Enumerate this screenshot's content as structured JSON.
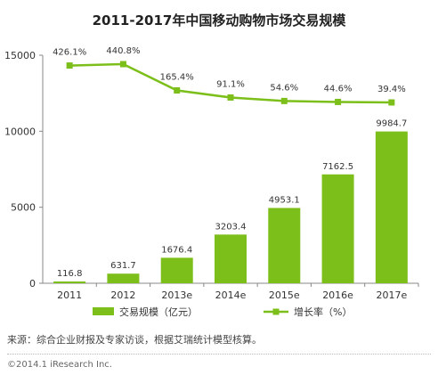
{
  "chart_data": {
    "type": "bar",
    "title": "2011-2017年中国移动购物市场交易规模",
    "categories": [
      "2011",
      "2012",
      "2013e",
      "2014e",
      "2015e",
      "2016e",
      "2017e"
    ],
    "series": [
      {
        "name": "交易规模（亿元）",
        "type": "bar",
        "values": [
          116.8,
          631.7,
          1676.4,
          3203.4,
          4953.1,
          7162.5,
          9984.7
        ],
        "labels": [
          "116.8",
          "631.7",
          "1676.4",
          "3203.4",
          "4953.1",
          "7162.5",
          "9984.7"
        ],
        "color": "#7cbf1a"
      },
      {
        "name": "增长率（%）",
        "type": "line",
        "values": [
          426.1,
          440.8,
          165.4,
          91.1,
          54.6,
          44.6,
          39.4
        ],
        "labels": [
          "426.1%",
          "440.8%",
          "165.4%",
          "91.1%",
          "54.6%",
          "44.6%",
          "39.4%"
        ],
        "color": "#7cbf1a"
      }
    ],
    "ylim": [
      0,
      15000
    ],
    "yticks": [
      "0",
      "5000",
      "10000",
      "15000"
    ],
    "grid": false,
    "legend": "bottom"
  },
  "footer": {
    "source": "来源：综合企业财报及专家访谈，根据艾瑞统计模型核算。",
    "copyright": "©2014.1 iResearch Inc."
  }
}
